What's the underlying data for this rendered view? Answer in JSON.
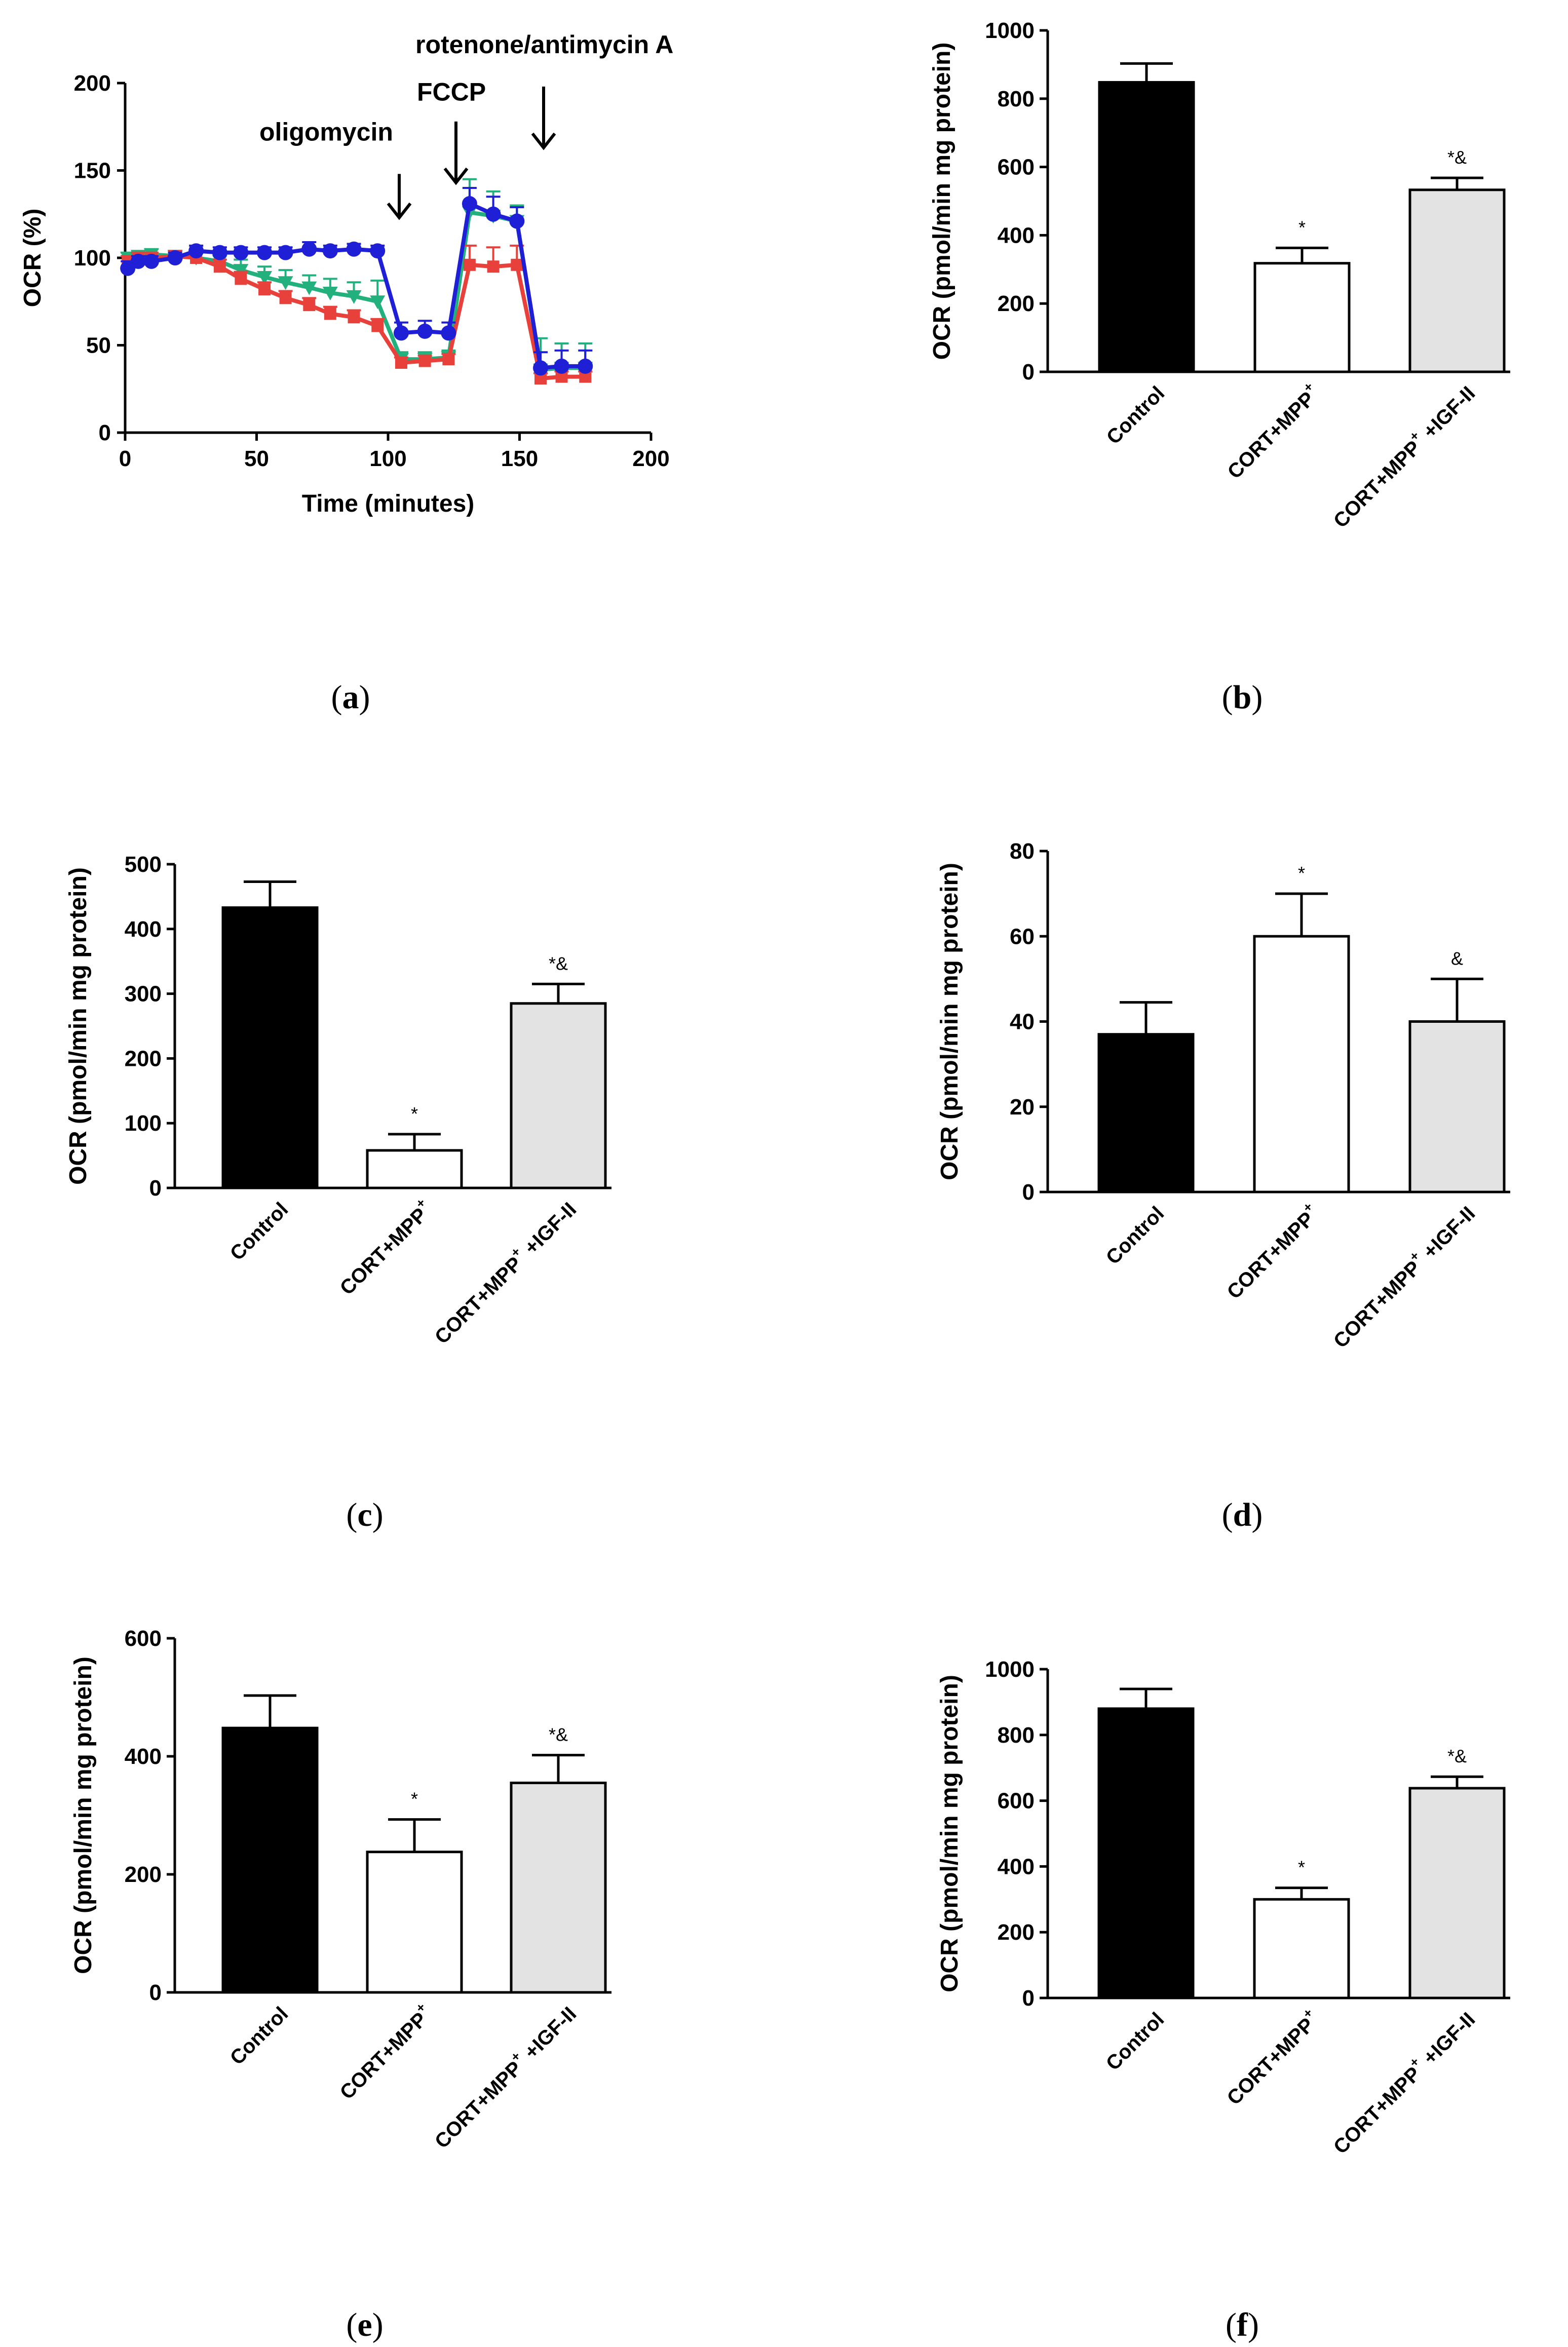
{
  "chart_data": [
    {
      "id": "a",
      "type": "line",
      "caption": "a",
      "xlabel": "Time (minutes)",
      "ylabel": "OCR (%)",
      "xlim": [
        0,
        200
      ],
      "ylim": [
        0,
        200
      ],
      "xticks": [
        0,
        50,
        100,
        150,
        200
      ],
      "yticks": [
        0,
        50,
        100,
        150,
        200
      ],
      "annotations": [
        {
          "text": "oligomycin",
          "x": 105,
          "label_y": 172,
          "arrow_from": 148,
          "arrow_to": 123
        },
        {
          "text": "FCCP",
          "x": 127,
          "label_y": 195,
          "arrow_from": 178,
          "arrow_to": 143
        },
        {
          "text": "rotenone/antimycin A",
          "x": 160,
          "label_y": 222,
          "arrow_from": 198,
          "arrow_to": 163
        }
      ],
      "series": [
        {
          "name": "Control",
          "color": "#1f1fd6",
          "marker": "circle",
          "x": [
            1,
            5,
            10,
            19,
            27,
            36,
            44,
            53,
            61,
            70,
            78,
            87,
            96,
            105,
            114,
            123,
            131,
            140,
            149,
            158,
            166,
            175
          ],
          "y": [
            94,
            98,
            98,
            100,
            104,
            103,
            103,
            103,
            103,
            105,
            104,
            105,
            104,
            57,
            58,
            57,
            131,
            125,
            121,
            37,
            38,
            38
          ],
          "err": [
            4,
            3,
            3,
            3,
            3,
            3,
            3,
            3,
            3,
            4,
            3,
            3,
            3,
            6,
            6,
            6,
            9,
            10,
            8,
            9,
            9,
            9
          ]
        },
        {
          "name": "CORT+MPP+",
          "color": "#e8403a",
          "marker": "square",
          "x": [
            1,
            5,
            10,
            19,
            27,
            36,
            44,
            53,
            61,
            70,
            78,
            87,
            96,
            105,
            114,
            123,
            131,
            140,
            149,
            158,
            166,
            175
          ],
          "y": [
            98,
            100,
            100,
            101,
            100,
            95,
            88,
            82,
            77,
            73,
            68,
            66,
            61,
            40,
            41,
            42,
            96,
            95,
            96,
            31,
            32,
            32
          ],
          "err": [
            3,
            3,
            3,
            3,
            3,
            4,
            4,
            4,
            4,
            4,
            4,
            4,
            4,
            3,
            3,
            3,
            11,
            11,
            11,
            3,
            3,
            3
          ]
        },
        {
          "name": "CORT+MPP+ +IGF-II",
          "color": "#22b07d",
          "marker": "triangle-down",
          "x": [
            1,
            5,
            10,
            19,
            27,
            36,
            44,
            53,
            61,
            70,
            78,
            87,
            96,
            105,
            114,
            123,
            131,
            140,
            149,
            158,
            166,
            175
          ],
          "y": [
            100,
            101,
            102,
            101,
            100,
            98,
            93,
            89,
            86,
            83,
            80,
            78,
            75,
            42,
            42,
            43,
            126,
            124,
            121,
            36,
            37,
            37
          ],
          "err": [
            3,
            3,
            3,
            3,
            3,
            5,
            6,
            6,
            7,
            7,
            8,
            8,
            12,
            4,
            4,
            4,
            19,
            14,
            9,
            18,
            14,
            14
          ]
        }
      ]
    },
    {
      "id": "b",
      "type": "bar",
      "caption": "b",
      "ylabel": "OCR (pmol/min mg protein)",
      "ylim": [
        0,
        1000
      ],
      "yticks": [
        0,
        200,
        400,
        600,
        800,
        1000
      ],
      "values": [
        848,
        318,
        533
      ],
      "errors": [
        55,
        45,
        35
      ],
      "sig": [
        "",
        "*",
        "*&"
      ]
    },
    {
      "id": "c",
      "type": "bar",
      "caption": "c",
      "ylabel": "OCR (pmol/min mg protein)",
      "ylim": [
        0,
        500
      ],
      "yticks": [
        0,
        100,
        200,
        300,
        400,
        500
      ],
      "values": [
        433,
        58,
        285
      ],
      "errors": [
        40,
        25,
        30
      ],
      "sig": [
        "",
        "*",
        "*&"
      ]
    },
    {
      "id": "d",
      "type": "bar",
      "caption": "d",
      "ylabel": "OCR (pmol/min mg protein)",
      "ylim": [
        0,
        80
      ],
      "yticks": [
        0,
        20,
        40,
        60,
        80
      ],
      "values": [
        37,
        60,
        40
      ],
      "errors": [
        7.5,
        10,
        10
      ],
      "sig": [
        "",
        "*",
        "&"
      ]
    },
    {
      "id": "e",
      "type": "bar",
      "caption": "e",
      "ylabel": "OCR (pmol/min mg protein)",
      "ylim": [
        0,
        600
      ],
      "yticks": [
        0,
        200,
        400,
        600
      ],
      "values": [
        448,
        238,
        355
      ],
      "errors": [
        55,
        55,
        47
      ],
      "sig": [
        "",
        "*",
        "*&"
      ]
    },
    {
      "id": "f",
      "type": "bar",
      "caption": "f",
      "ylabel": "OCR (pmol/min mg protein)",
      "ylim": [
        0,
        1000
      ],
      "yticks": [
        0,
        200,
        400,
        600,
        800,
        1000
      ],
      "values": [
        880,
        300,
        638
      ],
      "errors": [
        60,
        35,
        35
      ],
      "sig": [
        "",
        "*",
        "*&"
      ]
    }
  ],
  "bar_style": {
    "fills": [
      "#000000",
      "#ffffff",
      "#e3e3e3"
    ]
  },
  "categories": [
    {
      "main": "Control",
      "sup": "",
      "tail": ""
    },
    {
      "main": "CORT+MPP",
      "sup": "+",
      "tail": ""
    },
    {
      "main": "CORT+MPP",
      "sup": "+",
      "tail": " +IGF-II"
    }
  ]
}
